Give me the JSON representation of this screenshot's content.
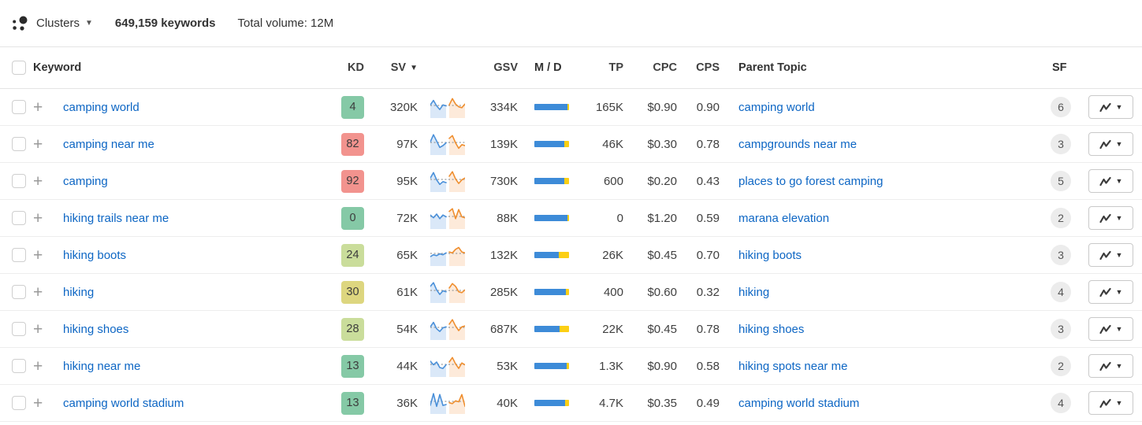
{
  "toolbar": {
    "view_label": "Clusters",
    "keywords_count": "649,159 keywords",
    "total_volume": "Total volume: 12M"
  },
  "table": {
    "headers": {
      "keyword": "Keyword",
      "kd": "KD",
      "sv": "SV",
      "gsv": "GSV",
      "md": "M / D",
      "tp": "TP",
      "cpc": "CPC",
      "cps": "CPS",
      "parent_topic": "Parent Topic",
      "sf": "SF"
    },
    "rows": [
      {
        "keyword": "camping world",
        "kd": "4",
        "kd_level": "green",
        "sv": "320K",
        "gsv": "334K",
        "tp": "165K",
        "cpc": "$0.90",
        "cps": "0.90",
        "parent_topic": "camping world",
        "sf": "6",
        "md_split": {
          "blue": 96,
          "yellow": 4
        },
        "sparkline": [
          0.55,
          0.8,
          0.5,
          0.3,
          0.55,
          0.5,
          0.55,
          0.9,
          0.6,
          0.45,
          0.4,
          0.6
        ]
      },
      {
        "keyword": "camping near me",
        "kd": "82",
        "kd_level": "red",
        "sv": "97K",
        "gsv": "139K",
        "tp": "46K",
        "cpc": "$0.30",
        "cps": "0.78",
        "parent_topic": "campgrounds near me",
        "sf": "3",
        "md_split": {
          "blue": 87,
          "yellow": 13
        },
        "sparkline": [
          0.55,
          0.95,
          0.6,
          0.25,
          0.35,
          0.5,
          0.75,
          0.9,
          0.5,
          0.2,
          0.4,
          0.35
        ]
      },
      {
        "keyword": "camping",
        "kd": "92",
        "kd_level": "red",
        "sv": "95K",
        "gsv": "730K",
        "tp": "600",
        "cpc": "$0.20",
        "cps": "0.43",
        "parent_topic": "places to go forest camping",
        "sf": "5",
        "md_split": {
          "blue": 87,
          "yellow": 13
        },
        "sparkline": [
          0.6,
          0.9,
          0.5,
          0.25,
          0.4,
          0.35,
          0.7,
          0.95,
          0.55,
          0.3,
          0.5,
          0.6
        ]
      },
      {
        "keyword": "hiking trails near me",
        "kd": "0",
        "kd_level": "green",
        "sv": "72K",
        "gsv": "88K",
        "tp": "0",
        "cpc": "$1.20",
        "cps": "0.59",
        "parent_topic": "marana elevation",
        "sf": "2",
        "md_split": {
          "blue": 96,
          "yellow": 4
        },
        "sparkline": [
          0.6,
          0.45,
          0.65,
          0.4,
          0.6,
          0.5,
          0.8,
          0.95,
          0.4,
          0.9,
          0.5,
          0.45
        ]
      },
      {
        "keyword": "hiking boots",
        "kd": "24",
        "kd_level": "lightgreen",
        "sv": "65K",
        "gsv": "132K",
        "tp": "26K",
        "cpc": "$0.45",
        "cps": "0.70",
        "parent_topic": "hiking boots",
        "sf": "3",
        "md_split": {
          "blue": 70,
          "yellow": 30
        },
        "sparkline": [
          0.35,
          0.45,
          0.4,
          0.5,
          0.45,
          0.55,
          0.6,
          0.55,
          0.75,
          0.85,
          0.6,
          0.55
        ]
      },
      {
        "keyword": "hiking",
        "kd": "30",
        "kd_level": "yellow",
        "sv": "61K",
        "gsv": "285K",
        "tp": "400",
        "cpc": "$0.60",
        "cps": "0.32",
        "parent_topic": "hiking",
        "sf": "4",
        "md_split": {
          "blue": 91,
          "yellow": 9
        },
        "sparkline": [
          0.75,
          0.95,
          0.55,
          0.3,
          0.5,
          0.45,
          0.65,
          0.9,
          0.75,
          0.45,
          0.4,
          0.55
        ]
      },
      {
        "keyword": "hiking shoes",
        "kd": "28",
        "kd_level": "lightgreen",
        "sv": "54K",
        "gsv": "687K",
        "tp": "22K",
        "cpc": "$0.45",
        "cps": "0.78",
        "parent_topic": "hiking shoes",
        "sf": "3",
        "md_split": {
          "blue": 72,
          "yellow": 28
        },
        "sparkline": [
          0.55,
          0.8,
          0.45,
          0.3,
          0.5,
          0.55,
          0.7,
          0.95,
          0.6,
          0.35,
          0.55,
          0.6
        ]
      },
      {
        "keyword": "hiking near me",
        "kd": "13",
        "kd_level": "green",
        "sv": "44K",
        "gsv": "53K",
        "tp": "1.3K",
        "cpc": "$0.90",
        "cps": "0.58",
        "parent_topic": "hiking spots near me",
        "sf": "2",
        "md_split": {
          "blue": 94,
          "yellow": 6
        },
        "sparkline": [
          0.7,
          0.5,
          0.65,
          0.35,
          0.3,
          0.5,
          0.65,
          0.9,
          0.55,
          0.3,
          0.6,
          0.5
        ]
      },
      {
        "keyword": "camping world stadium",
        "kd": "13",
        "kd_level": "green",
        "sv": "36K",
        "gsv": "40K",
        "tp": "4.7K",
        "cpc": "$0.35",
        "cps": "0.49",
        "parent_topic": "camping world stadium",
        "sf": "4",
        "md_split": {
          "blue": 88,
          "yellow": 12
        },
        "sparkline": [
          0.3,
          0.95,
          0.25,
          0.9,
          0.3,
          0.35,
          0.45,
          0.4,
          0.55,
          0.5,
          0.9,
          0.25
        ]
      }
    ]
  },
  "colors": {
    "link": "#0d66c4",
    "kd_green": "#85c9a6",
    "kd_lightgreen": "#cadd9b",
    "kd_yellow": "#ddd67f",
    "kd_red": "#f2938e",
    "bar_blue": "#3d8bd8",
    "bar_yellow": "#fccf14",
    "spark_blue": "#4a90d9",
    "spark_orange": "#ef8e2e",
    "spark_blue_fill": "#dae8f8",
    "spark_orange_fill": "#fdeada"
  }
}
